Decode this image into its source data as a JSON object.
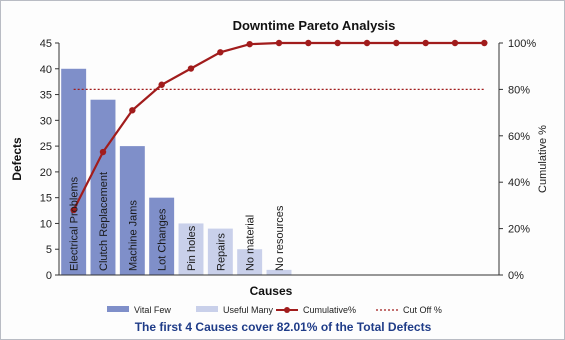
{
  "chart_data": {
    "type": "bar",
    "title": "Downtime Pareto Analysis",
    "xlabel": "Causes",
    "ylabel": "Defects",
    "y2label": "Cumulative %",
    "ylim": [
      0,
      45
    ],
    "y2lim": [
      0,
      100
    ],
    "yticks": [
      "0",
      "5",
      "10",
      "15",
      "20",
      "25",
      "30",
      "35",
      "40",
      "45"
    ],
    "y2ticks": [
      "0%",
      "20%",
      "40%",
      "60%",
      "80%",
      "100%"
    ],
    "categories": [
      "Electrical Problems",
      "Clutch Replacement",
      "Machine Jams",
      "Lot Changes",
      "Pin holes",
      "Repairs",
      "No material",
      "No resources",
      "",
      "",
      "",
      "",
      "",
      "",
      ""
    ],
    "series": [
      {
        "name": "Vital Few",
        "kind": "bar",
        "color": "#7f8fc9",
        "values": [
          40,
          34,
          25,
          15,
          null,
          null,
          null,
          null,
          null,
          null,
          null,
          null,
          null,
          null,
          null
        ]
      },
      {
        "name": "Useful Many",
        "kind": "bar",
        "color": "#c9d0ea",
        "values": [
          null,
          null,
          null,
          null,
          10,
          9,
          5,
          1,
          null,
          null,
          null,
          null,
          null,
          null,
          null
        ]
      },
      {
        "name": "Cumulative%",
        "kind": "line",
        "axis": "right",
        "color": "#a11c1c",
        "values": [
          28,
          53,
          71,
          82,
          89,
          96,
          99.5,
          100,
          100,
          100,
          100,
          100,
          100,
          100,
          100
        ]
      },
      {
        "name": "Cut Off %",
        "kind": "line",
        "axis": "right",
        "style": "dotted",
        "color": "#a11c1c",
        "values": [
          80,
          80,
          80,
          80,
          80,
          80,
          80,
          80,
          80,
          80,
          80,
          80,
          80,
          80,
          80
        ]
      }
    ],
    "grid": false,
    "legend_position": "bottom",
    "footer": "The first 4 Causes cover 82.01% of the Total Defects"
  }
}
